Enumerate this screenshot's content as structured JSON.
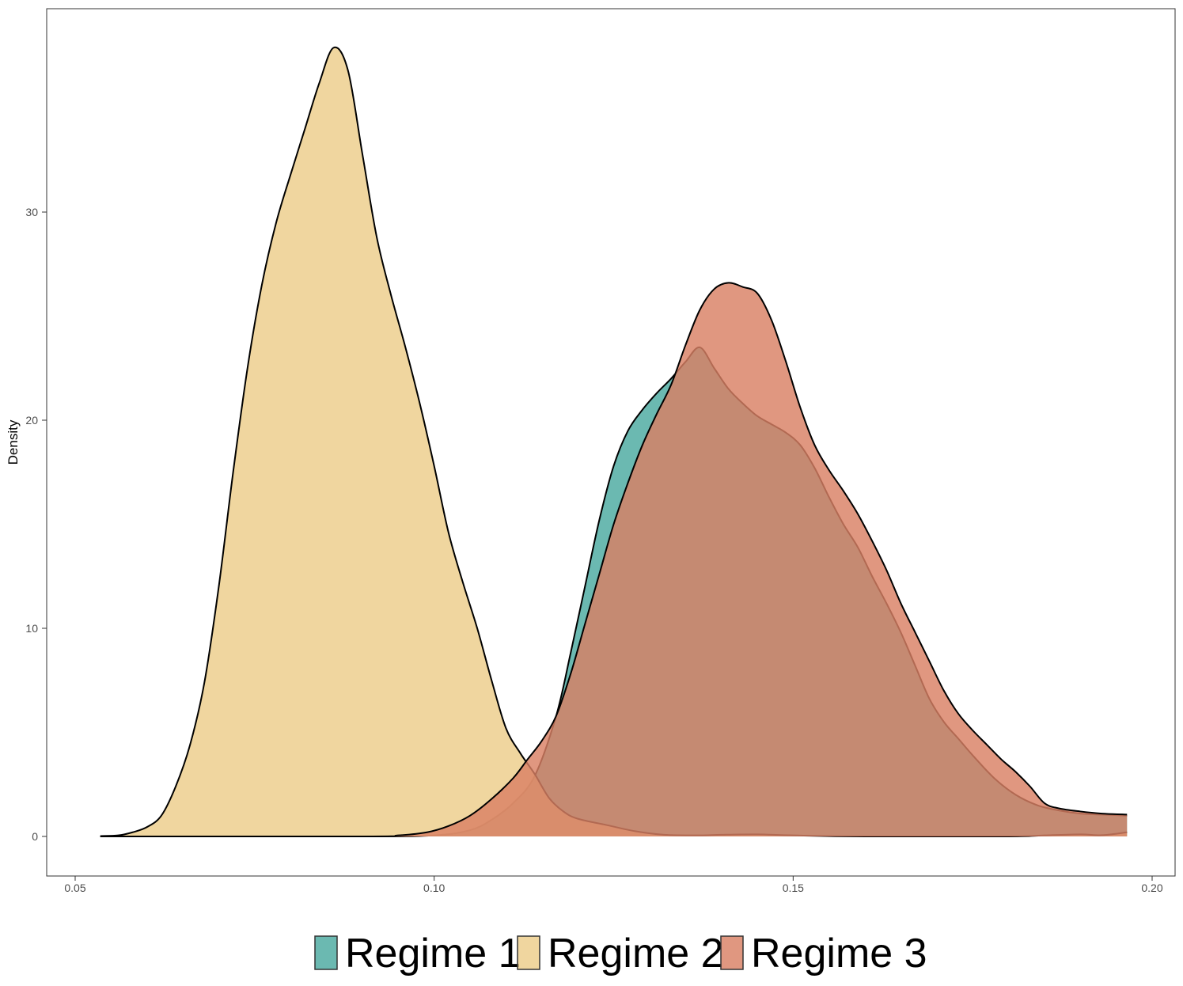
{
  "chart_data": {
    "type": "area",
    "subtype": "density",
    "title": "",
    "xlabel": "",
    "ylabel": "Density",
    "xlim": [
      0.05,
      0.2
    ],
    "ylim": [
      0,
      38
    ],
    "x_ticks": [
      "0.05",
      "0.10",
      "0.15",
      "0.20"
    ],
    "x_tick_values": [
      0.05,
      0.1,
      0.15,
      0.2
    ],
    "y_ticks": [
      "0",
      "10",
      "20",
      "30"
    ],
    "y_tick_values": [
      0,
      10,
      20,
      30
    ],
    "grid": false,
    "legend_position": "bottom",
    "series": [
      {
        "name": "Regime 1",
        "color": "#4BAAA0",
        "points": [
          [
            0.0535,
            0.0
          ],
          [
            0.09,
            0.0
          ],
          [
            0.1,
            0.05
          ],
          [
            0.105,
            0.3
          ],
          [
            0.108,
            0.8
          ],
          [
            0.111,
            1.6
          ],
          [
            0.114,
            2.9
          ],
          [
            0.117,
            5.8
          ],
          [
            0.119,
            8.8
          ],
          [
            0.121,
            12.0
          ],
          [
            0.123,
            15.2
          ],
          [
            0.125,
            17.8
          ],
          [
            0.127,
            19.5
          ],
          [
            0.129,
            20.5
          ],
          [
            0.131,
            21.3
          ],
          [
            0.133,
            22.0
          ],
          [
            0.135,
            22.8
          ],
          [
            0.137,
            23.5
          ],
          [
            0.139,
            22.5
          ],
          [
            0.141,
            21.5
          ],
          [
            0.143,
            20.8
          ],
          [
            0.145,
            20.2
          ],
          [
            0.147,
            19.8
          ],
          [
            0.149,
            19.4
          ],
          [
            0.151,
            18.8
          ],
          [
            0.153,
            17.7
          ],
          [
            0.155,
            16.3
          ],
          [
            0.157,
            15.0
          ],
          [
            0.159,
            13.9
          ],
          [
            0.161,
            12.5
          ],
          [
            0.163,
            11.2
          ],
          [
            0.165,
            9.8
          ],
          [
            0.167,
            8.2
          ],
          [
            0.169,
            6.6
          ],
          [
            0.171,
            5.5
          ],
          [
            0.173,
            4.7
          ],
          [
            0.175,
            3.9
          ],
          [
            0.178,
            2.8
          ],
          [
            0.181,
            2.0
          ],
          [
            0.184,
            1.5
          ],
          [
            0.187,
            1.25
          ],
          [
            0.19,
            1.1
          ],
          [
            0.193,
            1.05
          ],
          [
            0.1965,
            1.0
          ]
        ]
      },
      {
        "name": "Regime 2",
        "color": "#EDCD8A",
        "points": [
          [
            0.0535,
            0.02
          ],
          [
            0.056,
            0.05
          ],
          [
            0.058,
            0.2
          ],
          [
            0.06,
            0.45
          ],
          [
            0.062,
            1.0
          ],
          [
            0.064,
            2.4
          ],
          [
            0.066,
            4.4
          ],
          [
            0.068,
            7.4
          ],
          [
            0.07,
            12.0
          ],
          [
            0.072,
            17.5
          ],
          [
            0.074,
            22.5
          ],
          [
            0.076,
            26.5
          ],
          [
            0.078,
            29.5
          ],
          [
            0.08,
            31.8
          ],
          [
            0.082,
            34.0
          ],
          [
            0.084,
            36.2
          ],
          [
            0.086,
            37.9
          ],
          [
            0.088,
            36.8
          ],
          [
            0.09,
            32.8
          ],
          [
            0.092,
            28.8
          ],
          [
            0.094,
            26.0
          ],
          [
            0.096,
            23.5
          ],
          [
            0.098,
            20.8
          ],
          [
            0.1,
            17.8
          ],
          [
            0.102,
            14.6
          ],
          [
            0.104,
            12.2
          ],
          [
            0.106,
            10.0
          ],
          [
            0.108,
            7.5
          ],
          [
            0.11,
            5.2
          ],
          [
            0.112,
            4.0
          ],
          [
            0.114,
            3.0
          ],
          [
            0.116,
            1.85
          ],
          [
            0.118,
            1.2
          ],
          [
            0.12,
            0.85
          ],
          [
            0.124,
            0.55
          ],
          [
            0.128,
            0.25
          ],
          [
            0.132,
            0.08
          ],
          [
            0.137,
            0.05
          ],
          [
            0.14,
            0.08
          ],
          [
            0.145,
            0.1
          ],
          [
            0.15,
            0.05
          ],
          [
            0.16,
            0.0
          ],
          [
            0.18,
            0.0
          ],
          [
            0.185,
            0.05
          ],
          [
            0.19,
            0.1
          ],
          [
            0.193,
            0.06
          ],
          [
            0.1965,
            0.2
          ]
        ]
      },
      {
        "name": "Regime 3",
        "color": "#D98064",
        "points": [
          [
            0.0535,
            0.0
          ],
          [
            0.09,
            0.0
          ],
          [
            0.095,
            0.05
          ],
          [
            0.099,
            0.2
          ],
          [
            0.102,
            0.5
          ],
          [
            0.105,
            1.0
          ],
          [
            0.108,
            1.8
          ],
          [
            0.111,
            2.8
          ],
          [
            0.113,
            3.7
          ],
          [
            0.115,
            4.6
          ],
          [
            0.117,
            5.8
          ],
          [
            0.119,
            7.8
          ],
          [
            0.121,
            10.2
          ],
          [
            0.123,
            12.6
          ],
          [
            0.125,
            15.0
          ],
          [
            0.127,
            17.0
          ],
          [
            0.129,
            18.8
          ],
          [
            0.131,
            20.3
          ],
          [
            0.133,
            21.7
          ],
          [
            0.135,
            23.6
          ],
          [
            0.137,
            25.3
          ],
          [
            0.139,
            26.3
          ],
          [
            0.141,
            26.6
          ],
          [
            0.143,
            26.4
          ],
          [
            0.145,
            26.1
          ],
          [
            0.147,
            24.8
          ],
          [
            0.149,
            22.8
          ],
          [
            0.151,
            20.6
          ],
          [
            0.153,
            18.8
          ],
          [
            0.155,
            17.6
          ],
          [
            0.157,
            16.6
          ],
          [
            0.159,
            15.5
          ],
          [
            0.161,
            14.2
          ],
          [
            0.163,
            12.8
          ],
          [
            0.165,
            11.2
          ],
          [
            0.167,
            9.8
          ],
          [
            0.169,
            8.4
          ],
          [
            0.171,
            7.0
          ],
          [
            0.173,
            5.9
          ],
          [
            0.175,
            5.1
          ],
          [
            0.177,
            4.4
          ],
          [
            0.179,
            3.7
          ],
          [
            0.181,
            3.1
          ],
          [
            0.183,
            2.4
          ],
          [
            0.185,
            1.6
          ],
          [
            0.187,
            1.35
          ],
          [
            0.19,
            1.2
          ],
          [
            0.193,
            1.1
          ],
          [
            0.1965,
            1.05
          ]
        ]
      }
    ]
  }
}
